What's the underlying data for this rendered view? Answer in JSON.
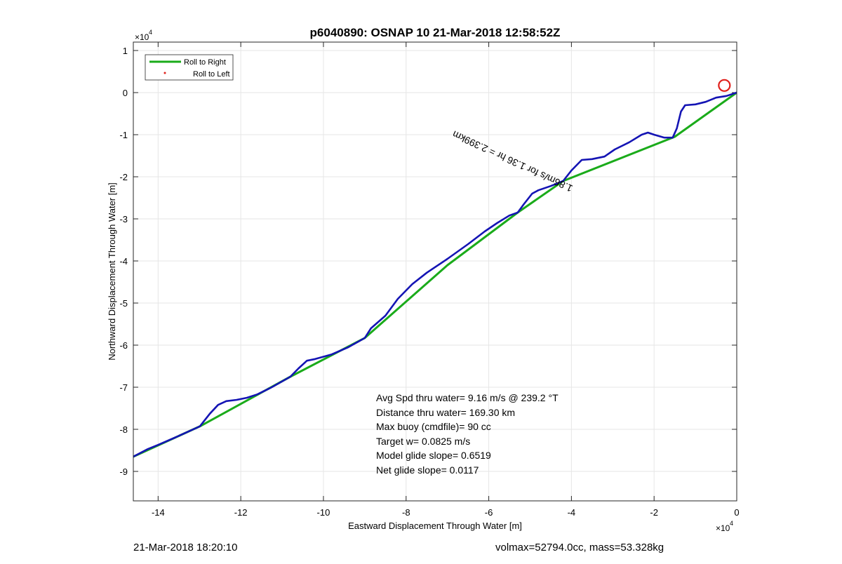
{
  "chart_data": {
    "type": "line",
    "title": "p6040890: OSNAP 10 21-Mar-2018 12:58:52Z",
    "xlabel": "Eastward Displacement Through Water [m]",
    "ylabel": "Northward Displacement Through Water [m]",
    "x_exponent_label": "×10",
    "x_exponent_power": "4",
    "y_exponent_label": "×10",
    "y_exponent_power": "4",
    "xlim": [
      -14.6,
      0
    ],
    "ylim": [
      -9.7,
      1.2
    ],
    "x_ticks": [
      -14,
      -12,
      -10,
      -8,
      -6,
      -4,
      -2,
      0
    ],
    "y_ticks": [
      1,
      0,
      -1,
      -2,
      -3,
      -4,
      -5,
      -6,
      -7,
      -8,
      -9
    ],
    "grid": true,
    "legend_placement": "top-left",
    "legend": [
      {
        "label": "Roll to Right",
        "color": "#1aab1a",
        "style": "line"
      },
      {
        "label": "Roll to Left",
        "color": "#e0201b",
        "style": "dot"
      }
    ],
    "series": [
      {
        "name": "Roll to Right",
        "color": "#1aab1a",
        "x": [
          -14.6,
          -12.99,
          -10.8,
          -9.0,
          -7.0,
          -5.3,
          -4.2,
          -1.5,
          0
        ],
        "y": [
          -8.65,
          -7.93,
          -6.75,
          -5.83,
          -4.1,
          -2.85,
          -2.1,
          -1.05,
          0
        ]
      },
      {
        "name": "",
        "color": "#1414b4",
        "x": [
          -14.6,
          -14.25,
          -14.0,
          -13.6,
          -12.99,
          -12.75,
          -12.55,
          -12.35,
          -12.1,
          -11.85,
          -11.6,
          -11.25,
          -10.8,
          -10.6,
          -10.4,
          -10.2,
          -9.8,
          -9.4,
          -9.0,
          -8.85,
          -8.5,
          -8.2,
          -7.85,
          -7.5,
          -7.0,
          -6.5,
          -6.1,
          -5.8,
          -5.5,
          -5.3,
          -5.15,
          -4.95,
          -4.8,
          -4.5,
          -4.2,
          -4.0,
          -3.75,
          -3.5,
          -3.2,
          -2.95,
          -2.6,
          -2.3,
          -2.15,
          -2.0,
          -1.75,
          -1.55,
          -1.45,
          -1.35,
          -1.25,
          -1.0,
          -0.75,
          -0.5,
          -0.25,
          0
        ],
        "y": [
          -8.65,
          -8.47,
          -8.37,
          -8.2,
          -7.93,
          -7.63,
          -7.42,
          -7.33,
          -7.3,
          -7.25,
          -7.17,
          -7.0,
          -6.75,
          -6.55,
          -6.37,
          -6.33,
          -6.22,
          -6.05,
          -5.83,
          -5.6,
          -5.3,
          -4.9,
          -4.55,
          -4.28,
          -3.95,
          -3.6,
          -3.3,
          -3.1,
          -2.92,
          -2.85,
          -2.65,
          -2.4,
          -2.32,
          -2.22,
          -2.1,
          -1.85,
          -1.6,
          -1.58,
          -1.52,
          -1.35,
          -1.18,
          -1.0,
          -0.95,
          -1.0,
          -1.07,
          -1.07,
          -0.85,
          -0.45,
          -0.3,
          -0.28,
          -0.22,
          -0.12,
          -0.08,
          0
        ]
      }
    ],
    "marker": {
      "x": -0.3,
      "y": 0.17,
      "color": "#e0201b",
      "shape": "circle"
    },
    "annotations": [
      {
        "text": "Avg Spd thru water=  9.16 m/s @ 239.2 °T"
      },
      {
        "text": "Distance thru water= 169.30 km"
      },
      {
        "text": "Max buoy (cmdfile)= 90 cc"
      },
      {
        "text": "Target w= 0.0825 m/s"
      },
      {
        "text": "Model glide slope= 0.6519"
      },
      {
        "text": "Net glide slope= 0.0117"
      }
    ],
    "rotated_label": {
      "text": "1.86m/s for 1.36 hr = 2.399km",
      "x": -3.95,
      "y": -2.22,
      "angle_deg": 205
    }
  },
  "footer": {
    "left": "21-Mar-2018 18:20:10",
    "right": "volmax=52794.0cc, mass=53.328kg"
  }
}
